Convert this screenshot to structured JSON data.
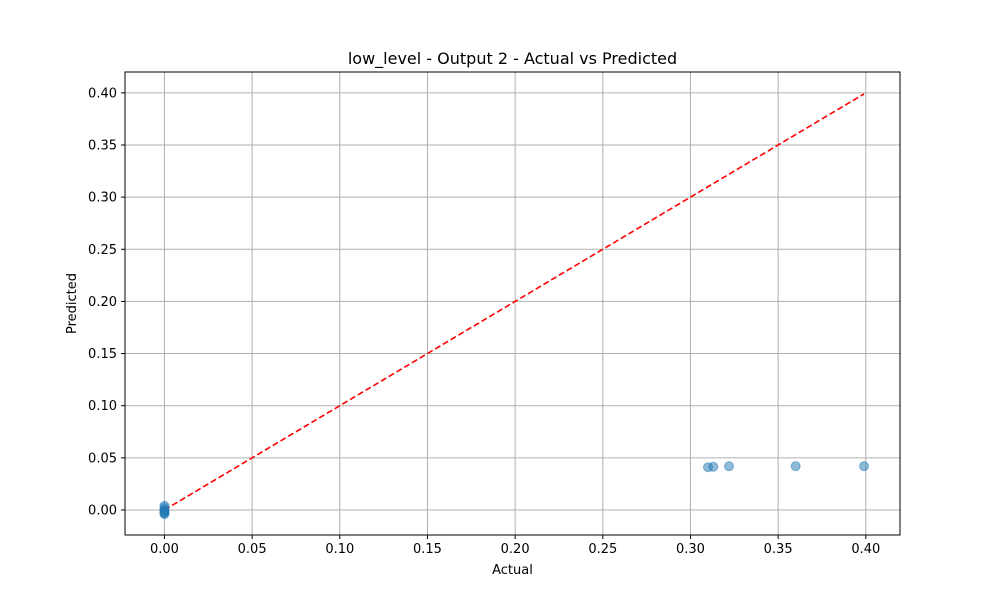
{
  "chart_data": {
    "type": "scatter",
    "title": "low_level - Output 2 - Actual vs Predicted",
    "xlabel": "Actual",
    "ylabel": "Predicted",
    "xlim": [
      -0.0225,
      0.4195
    ],
    "ylim": [
      -0.024,
      0.42
    ],
    "x_ticks": [
      "0.00",
      "0.05",
      "0.10",
      "0.15",
      "0.20",
      "0.25",
      "0.30",
      "0.35",
      "0.40"
    ],
    "y_ticks": [
      "0.00",
      "0.05",
      "0.10",
      "0.15",
      "0.20",
      "0.25",
      "0.30",
      "0.35",
      "0.40"
    ],
    "grid": true,
    "series": [
      {
        "kind": "points",
        "color": "#1f77b4",
        "alpha": 0.5,
        "points": [
          {
            "x": 0.0,
            "y": 0.004
          },
          {
            "x": 0.0,
            "y": 0.002
          },
          {
            "x": 0.0,
            "y": 0.0
          },
          {
            "x": 0.0,
            "y": -0.001
          },
          {
            "x": 0.0,
            "y": -0.002
          },
          {
            "x": 0.0,
            "y": -0.003
          },
          {
            "x": 0.0,
            "y": -0.004
          },
          {
            "x": 0.31,
            "y": 0.041
          },
          {
            "x": 0.313,
            "y": 0.0415
          },
          {
            "x": 0.322,
            "y": 0.042
          },
          {
            "x": 0.36,
            "y": 0.042
          },
          {
            "x": 0.399,
            "y": 0.042
          }
        ]
      },
      {
        "kind": "reference-line",
        "color": "#ff0000",
        "dash": "dashed",
        "x": [
          0.0,
          0.399
        ],
        "y": [
          0.0,
          0.399
        ]
      }
    ]
  }
}
